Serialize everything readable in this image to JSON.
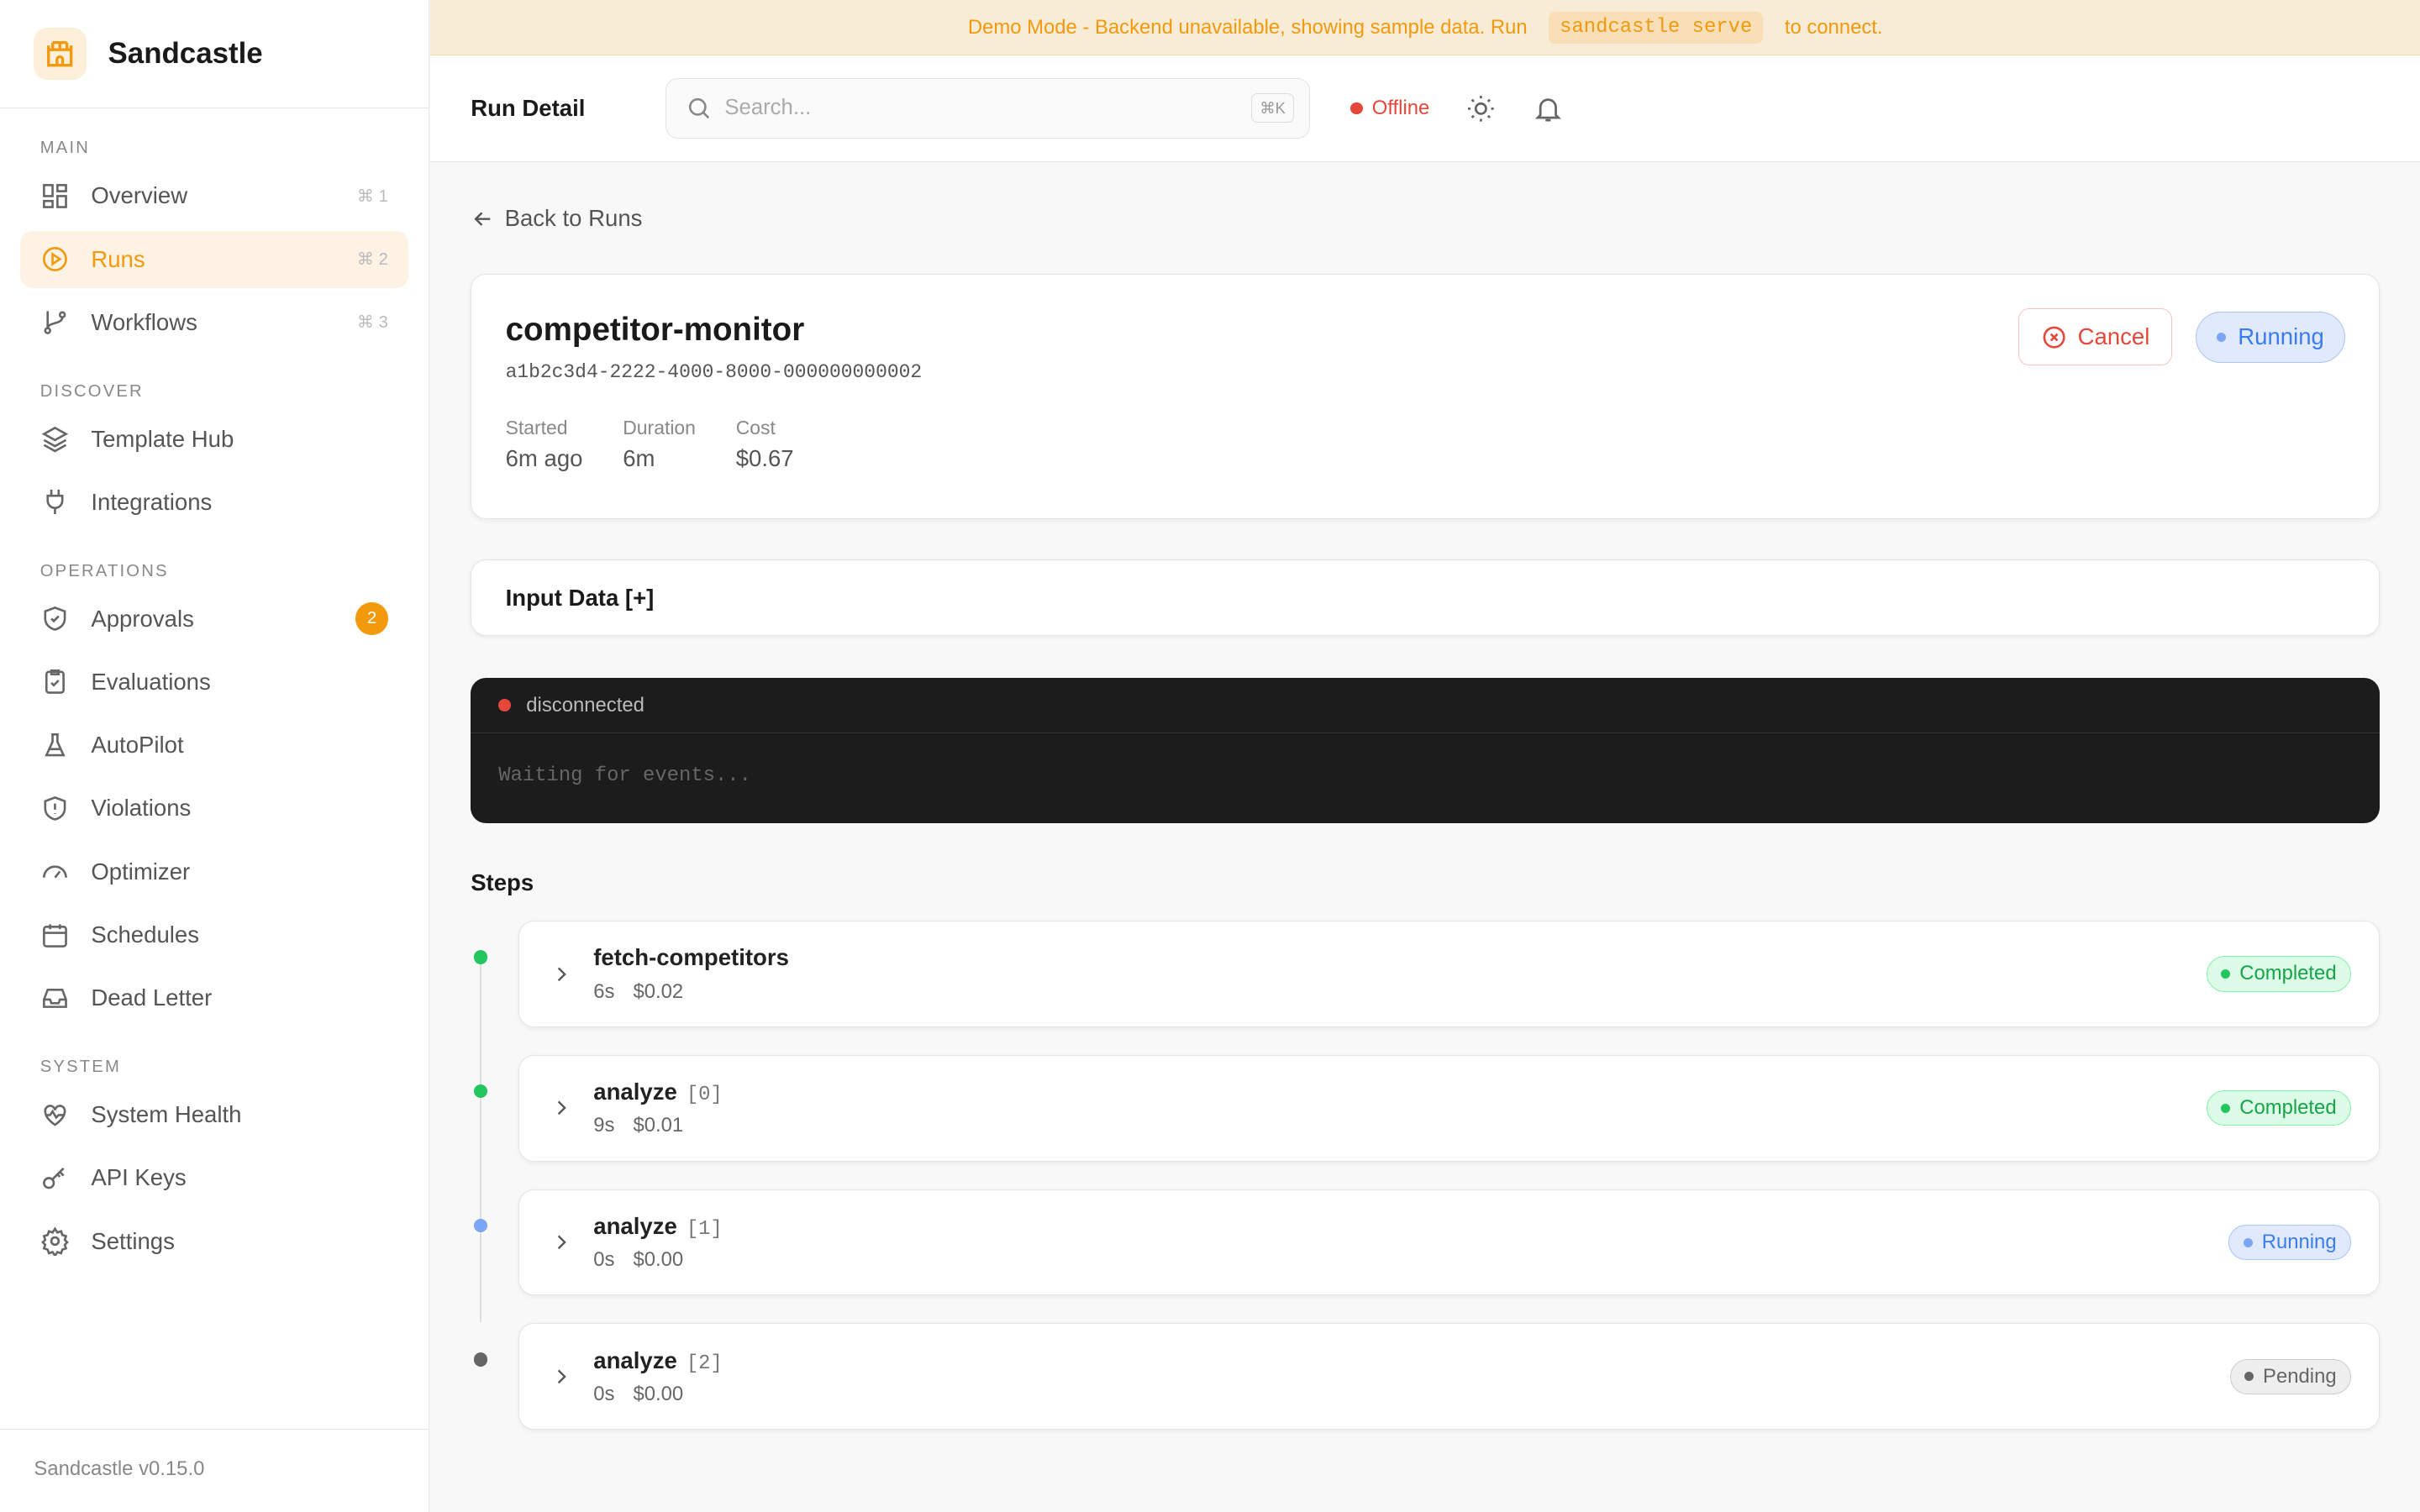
{
  "brand": {
    "name": "Sandcastle",
    "version": "Sandcastle v0.15.0"
  },
  "sidebar": {
    "sections": [
      {
        "title": "MAIN",
        "items": [
          {
            "label": "Overview",
            "kbd": "⌘ 1",
            "icon": "grid-icon"
          },
          {
            "label": "Runs",
            "kbd": "⌘ 2",
            "icon": "play-circle-icon",
            "active": true
          },
          {
            "label": "Workflows",
            "kbd": "⌘ 3",
            "icon": "git-branch-icon"
          }
        ]
      },
      {
        "title": "DISCOVER",
        "items": [
          {
            "label": "Template Hub",
            "icon": "layers-icon"
          },
          {
            "label": "Integrations",
            "icon": "plug-icon"
          }
        ]
      },
      {
        "title": "OPERATIONS",
        "items": [
          {
            "label": "Approvals",
            "icon": "shield-check-icon",
            "badge": "2"
          },
          {
            "label": "Evaluations",
            "icon": "clipboard-check-icon"
          },
          {
            "label": "AutoPilot",
            "icon": "flask-icon"
          },
          {
            "label": "Violations",
            "icon": "shield-alert-icon"
          },
          {
            "label": "Optimizer",
            "icon": "gauge-icon"
          },
          {
            "label": "Schedules",
            "icon": "calendar-icon"
          },
          {
            "label": "Dead Letter",
            "icon": "inbox-icon"
          }
        ]
      },
      {
        "title": "SYSTEM",
        "items": [
          {
            "label": "System Health",
            "icon": "heart-pulse-icon"
          },
          {
            "label": "API Keys",
            "icon": "key-icon"
          },
          {
            "label": "Settings",
            "icon": "gear-icon"
          }
        ]
      }
    ]
  },
  "banner": {
    "text": "Demo Mode - Backend unavailable, showing sample data. Run",
    "command": "sandcastle serve",
    "suffix": "to connect."
  },
  "topbar": {
    "title": "Run Detail",
    "search_placeholder": "Search...",
    "search_kbd": "⌘K",
    "status": "Offline"
  },
  "run": {
    "back": "Back to Runs",
    "name": "competitor-monitor",
    "id": "a1b2c3d4-2222-4000-8000-000000000002",
    "cancel": "Cancel",
    "status": "Running",
    "meta": [
      {
        "k": "Started",
        "v": "6m ago"
      },
      {
        "k": "Duration",
        "v": "6m"
      },
      {
        "k": "Cost",
        "v": "$0.67"
      }
    ]
  },
  "input_data": "Input Data [+]",
  "console": {
    "status": "disconnected",
    "body": "Waiting for events..."
  },
  "steps_title": "Steps",
  "steps": [
    {
      "name": "fetch-competitors",
      "index": "",
      "duration": "6s",
      "cost": "$0.02",
      "status": "Completed"
    },
    {
      "name": "analyze",
      "index": "[0]",
      "duration": "9s",
      "cost": "$0.01",
      "status": "Completed"
    },
    {
      "name": "analyze",
      "index": "[1]",
      "duration": "0s",
      "cost": "$0.00",
      "status": "Running"
    },
    {
      "name": "analyze",
      "index": "[2]",
      "duration": "0s",
      "cost": "$0.00",
      "status": "Pending"
    }
  ],
  "colors": {
    "accent": "#f29a0c",
    "completed": "#22c55e",
    "running": "#3b7cef",
    "pending": "#666666",
    "error": "#e5483b"
  }
}
